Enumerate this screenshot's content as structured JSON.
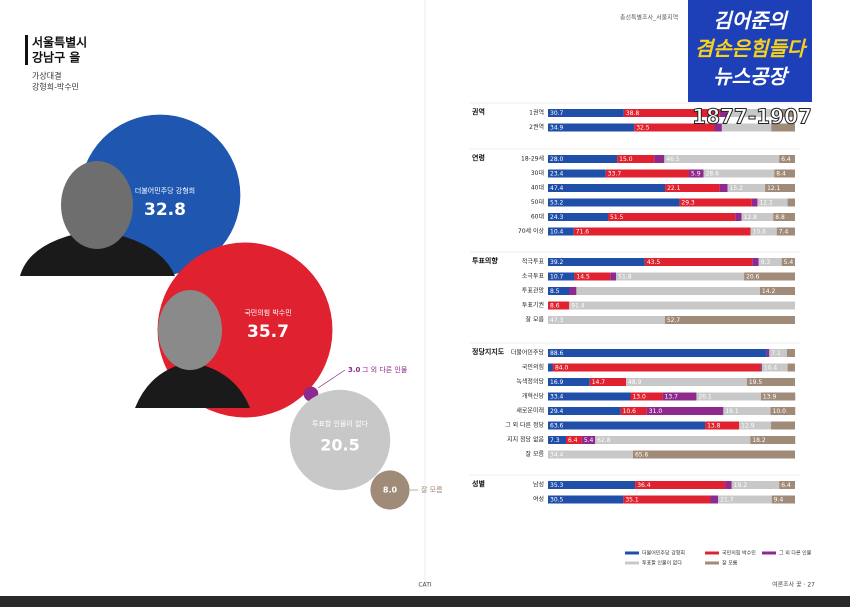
{
  "header": {
    "region": "서울특별시",
    "district": "강남구 을",
    "subtitle": "가상대결",
    "matchup": "강형희-박수민",
    "top_note": "총선특별조사_서울지역"
  },
  "overlay": {
    "line1": "김어준의",
    "line2": "겸손은힘들다",
    "line3": "뉴스공장",
    "phone": "1877-1907"
  },
  "footer": {
    "center": "CATI",
    "page": "여론조사 꽃 · 27"
  },
  "chart_data": [
    {
      "type": "bubble",
      "labels": [
        "더불어민주당 강형희",
        "국민의힘 박수민",
        "그 외 다른 인물",
        "투표할 인물이 없다",
        "잘 모름"
      ],
      "values": [
        32.8,
        35.7,
        3,
        20.5,
        8
      ],
      "value_labels": [
        "32.8",
        "35.7",
        "3.0",
        "20.5",
        "8.0"
      ],
      "colors": [
        "#1f57b0",
        "#e0212f",
        "#8e2a8e",
        "#c8c8c8",
        "#a08a78"
      ]
    },
    {
      "type": "bar",
      "orientation": "horizontal",
      "stacked": true,
      "title": "권역",
      "categories": [
        "1권역",
        "2권역"
      ],
      "xlim": [
        0,
        100
      ],
      "series": [
        {
          "name": "더불어민주당 강형희",
          "color": "#1f4fa8",
          "values": [
            30.7,
            34.9
          ],
          "value_labels": [
            "30.7",
            "34.9"
          ]
        },
        {
          "name": "국민의힘 박수민",
          "color": "#e0212f",
          "values": [
            38.8,
            32.5
          ],
          "value_labels": [
            "38.8",
            "32.5"
          ]
        },
        {
          "name": "그 외 다른 인물",
          "color": "#8e2a8e",
          "values": [
            3,
            3
          ],
          "value_labels": [
            null,
            null
          ]
        },
        {
          "name": "투표할 인물이 없다",
          "color": "#c8c8c8",
          "values": [
            21,
            20
          ],
          "value_labels": [
            null,
            null
          ]
        },
        {
          "name": "잘 모름",
          "color": "#a08a78",
          "values": [
            6.5,
            9.6
          ],
          "value_labels": [
            null,
            null
          ]
        }
      ]
    },
    {
      "type": "bar",
      "orientation": "horizontal",
      "stacked": true,
      "title": "연령",
      "categories": [
        "18-29세",
        "30대",
        "40대",
        "50대",
        "60대",
        "70세 이상"
      ],
      "xlim": [
        0,
        100
      ],
      "series": [
        {
          "name": "더불어민주당 강형희",
          "color": "#1f4fa8",
          "values": [
            28,
            23.4,
            47.4,
            53.2,
            24.3,
            10.4
          ],
          "value_labels": [
            "28.0",
            "23.4",
            "47.4",
            "53.2",
            "24.3",
            "10.4"
          ]
        },
        {
          "name": "국민의힘 박수민",
          "color": "#e0212f",
          "values": [
            15,
            33.7,
            22.1,
            29.3,
            51.5,
            71.6
          ],
          "value_labels": [
            "15.0",
            "33.7",
            "22.1",
            "29.3",
            "51.5",
            "71.6"
          ]
        },
        {
          "name": "그 외 다른 인물",
          "color": "#8e2a8e",
          "values": [
            4.1,
            5.9,
            3.2,
            2.3,
            2.6,
            0
          ],
          "value_labels": [
            null,
            "5.9",
            null,
            null,
            null,
            null
          ]
        },
        {
          "name": "투표할 인물이 없다",
          "color": "#c8c8c8",
          "values": [
            46.5,
            28.6,
            15.2,
            12.2,
            12.8,
            10.6
          ],
          "value_labels": [
            "46.5",
            "28.6",
            "15.2",
            "12.2",
            "12.8",
            "10.6"
          ]
        },
        {
          "name": "잘 모름",
          "color": "#a08a78",
          "values": [
            6.4,
            8.4,
            12.1,
            3,
            8.8,
            7.4
          ],
          "value_labels": [
            "6.4",
            "8.4",
            "12.1",
            null,
            "8.8",
            "7.4"
          ]
        }
      ]
    },
    {
      "type": "bar",
      "orientation": "horizontal",
      "stacked": true,
      "title": "투표의향",
      "categories": [
        "적극투표",
        "소극투표",
        "투표관망",
        "투표기권",
        "잘 모름"
      ],
      "xlim": [
        0,
        100
      ],
      "series": [
        {
          "name": "더불어민주당 강형희",
          "color": "#1f4fa8",
          "values": [
            39.2,
            10.7,
            8.5,
            0,
            0
          ],
          "value_labels": [
            "39.2",
            "10.7",
            "8.5",
            null,
            null
          ]
        },
        {
          "name": "국민의힘 박수민",
          "color": "#e0212f",
          "values": [
            43.5,
            14.5,
            0,
            8.6,
            0
          ],
          "value_labels": [
            "43.5",
            "14.5",
            null,
            "8.6",
            null
          ]
        },
        {
          "name": "그 외 다른 인물",
          "color": "#8e2a8e",
          "values": [
            2.6,
            2.4,
            3,
            0,
            0
          ],
          "value_labels": [
            null,
            null,
            null,
            null,
            null
          ]
        },
        {
          "name": "투표할 인물이 없다",
          "color": "#c8c8c8",
          "values": [
            9.3,
            51.8,
            74.3,
            91.4,
            47.3
          ],
          "value_labels": [
            "9.3",
            "51.8",
            null,
            "91.4",
            "47.3"
          ]
        },
        {
          "name": "잘 모름",
          "color": "#a08a78",
          "values": [
            5.4,
            20.6,
            14.2,
            0,
            52.7
          ],
          "value_labels": [
            "5.4",
            "20.6",
            "14.2",
            null,
            "52.7"
          ]
        }
      ]
    },
    {
      "type": "bar",
      "orientation": "horizontal",
      "stacked": true,
      "title": "정당지지도",
      "categories": [
        "더불어민주당",
        "국민의힘",
        "녹색정의당",
        "개혁신당",
        "새로운미래",
        "그 외 다른 정당",
        "지지 정당 없음",
        "잘 모름"
      ],
      "xlim": [
        0,
        100
      ],
      "series": [
        {
          "name": "더불어민주당 강형희",
          "color": "#1f4fa8",
          "values": [
            88.6,
            2,
            16.9,
            33.4,
            29.4,
            63.6,
            7.3,
            0
          ],
          "value_labels": [
            "88.6",
            null,
            "16.9",
            "33.4",
            "29.4",
            "63.6",
            "7.3",
            null
          ]
        },
        {
          "name": "국민의힘 박수민",
          "color": "#e0212f",
          "values": [
            0,
            84,
            14.7,
            13,
            10.6,
            13.8,
            6.4,
            0
          ],
          "value_labels": [
            null,
            "84.0",
            "14.7",
            "13.0",
            "10.6",
            "13.8",
            "6.4",
            null
          ]
        },
        {
          "name": "그 외 다른 인물",
          "color": "#8e2a8e",
          "values": [
            1,
            0.6,
            0,
            13.7,
            31,
            0,
            5.4,
            0
          ],
          "value_labels": [
            null,
            null,
            null,
            "13.7",
            "31.0",
            null,
            "5.4",
            null
          ]
        },
        {
          "name": "투표할 인물이 없다",
          "color": "#c8c8c8",
          "values": [
            7.1,
            10.4,
            48.9,
            26.1,
            19.1,
            12.9,
            62.8,
            34.4
          ],
          "value_labels": [
            "7.1",
            "10.4",
            "48.9",
            "26.1",
            "19.1",
            "12.9",
            "62.8",
            "34.4"
          ]
        },
        {
          "name": "잘 모름",
          "color": "#a08a78",
          "values": [
            3.3,
            3,
            19.5,
            13.9,
            10,
            9.7,
            18.2,
            65.6
          ],
          "value_labels": [
            null,
            null,
            "19.5",
            "13.9",
            "10.0",
            null,
            "18.2",
            "65.6"
          ]
        }
      ]
    },
    {
      "type": "bar",
      "orientation": "horizontal",
      "stacked": true,
      "title": "성별",
      "categories": [
        "남성",
        "여성"
      ],
      "xlim": [
        0,
        100
      ],
      "series": [
        {
          "name": "더불어민주당 강형희",
          "color": "#1f4fa8",
          "values": [
            35.3,
            30.5
          ],
          "value_labels": [
            "35.3",
            "30.5"
          ]
        },
        {
          "name": "국민의힘 박수민",
          "color": "#e0212f",
          "values": [
            36.4,
            35.1
          ],
          "value_labels": [
            "36.4",
            "35.1"
          ]
        },
        {
          "name": "그 외 다른 인물",
          "color": "#8e2a8e",
          "values": [
            2.7,
            3.3
          ],
          "value_labels": [
            null,
            null
          ]
        },
        {
          "name": "투표할 인물이 없다",
          "color": "#c8c8c8",
          "values": [
            19.2,
            21.7
          ],
          "value_labels": [
            "19.2",
            "21.7"
          ]
        },
        {
          "name": "잘 모름",
          "color": "#a08a78",
          "values": [
            6.4,
            9.4
          ],
          "value_labels": [
            "6.4",
            "9.4"
          ]
        }
      ]
    }
  ]
}
